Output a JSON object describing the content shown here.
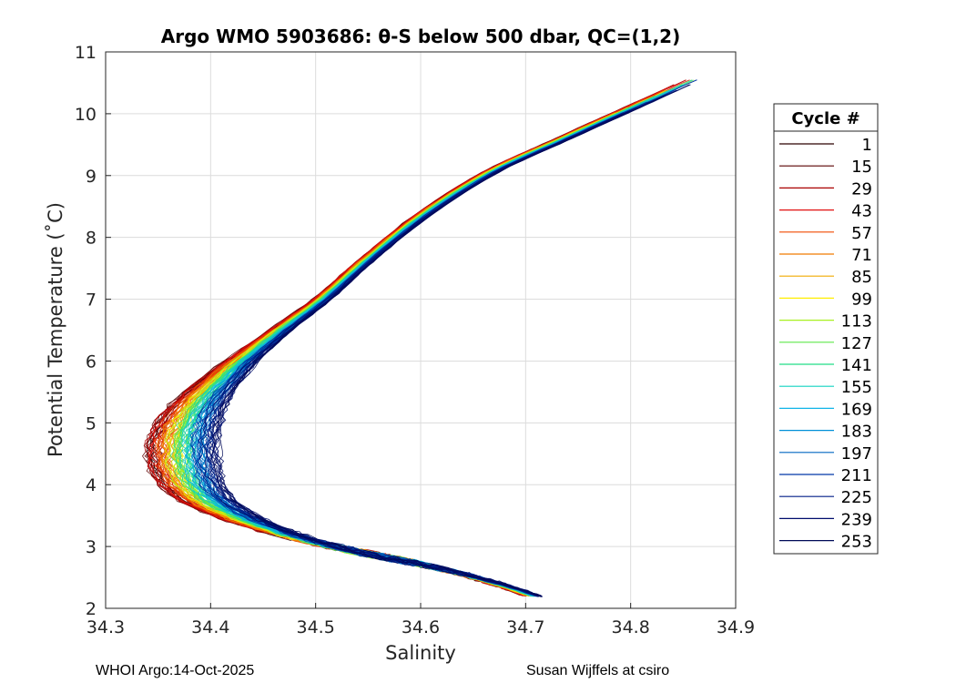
{
  "chart_data": {
    "type": "line",
    "title": "Argo WMO 5903686: θ-S below 500 dbar,  QC=(1,2)",
    "xlabel": "Salinity",
    "ylabel": "Potential Temperature (˚C)",
    "xlim": [
      34.3,
      34.9
    ],
    "ylim": [
      2,
      11
    ],
    "xticks": [
      "34.3",
      "34.4",
      "34.5",
      "34.6",
      "34.7",
      "34.8",
      "34.9"
    ],
    "yticks": [
      "2",
      "3",
      "4",
      "5",
      "6",
      "7",
      "8",
      "9",
      "10",
      "11"
    ],
    "grid": true,
    "legend": {
      "title": "Cycle #",
      "position": "right",
      "entries": [
        "1",
        "15",
        "29",
        "43",
        "57",
        "71",
        "85",
        "99",
        "113",
        "127",
        "141",
        "155",
        "169",
        "183",
        "197",
        "211",
        "225",
        "239",
        "253"
      ],
      "colors": [
        "#2b0000",
        "#5a0000",
        "#aa0000",
        "#e11010",
        "#f04a00",
        "#f07a00",
        "#f0aa00",
        "#ffee00",
        "#a8f020",
        "#5ee84a",
        "#22dd88",
        "#10d4c0",
        "#10b4e8",
        "#0090d8",
        "#0066c0",
        "#0038a8",
        "#001e88",
        "#000c6c",
        "#000a58"
      ]
    },
    "profile_salinity": [
      34.705,
      34.68,
      34.64,
      34.59,
      34.53,
      34.47,
      34.42,
      34.385,
      34.37,
      34.37,
      34.385,
      34.42,
      34.465,
      34.505,
      34.545,
      34.6,
      34.665,
      34.735,
      34.8,
      34.865
    ],
    "profile_theta": [
      2.2,
      2.35,
      2.55,
      2.75,
      2.95,
      3.2,
      3.5,
      3.85,
      4.3,
      4.8,
      5.3,
      5.9,
      6.5,
      7.0,
      7.6,
      8.35,
      9.05,
      9.6,
      10.1,
      10.6
    ],
    "series_count": 253,
    "footer_left": "WHOI Argo:14-Oct-2025",
    "footer_right": "Susan Wijffels at csiro"
  }
}
